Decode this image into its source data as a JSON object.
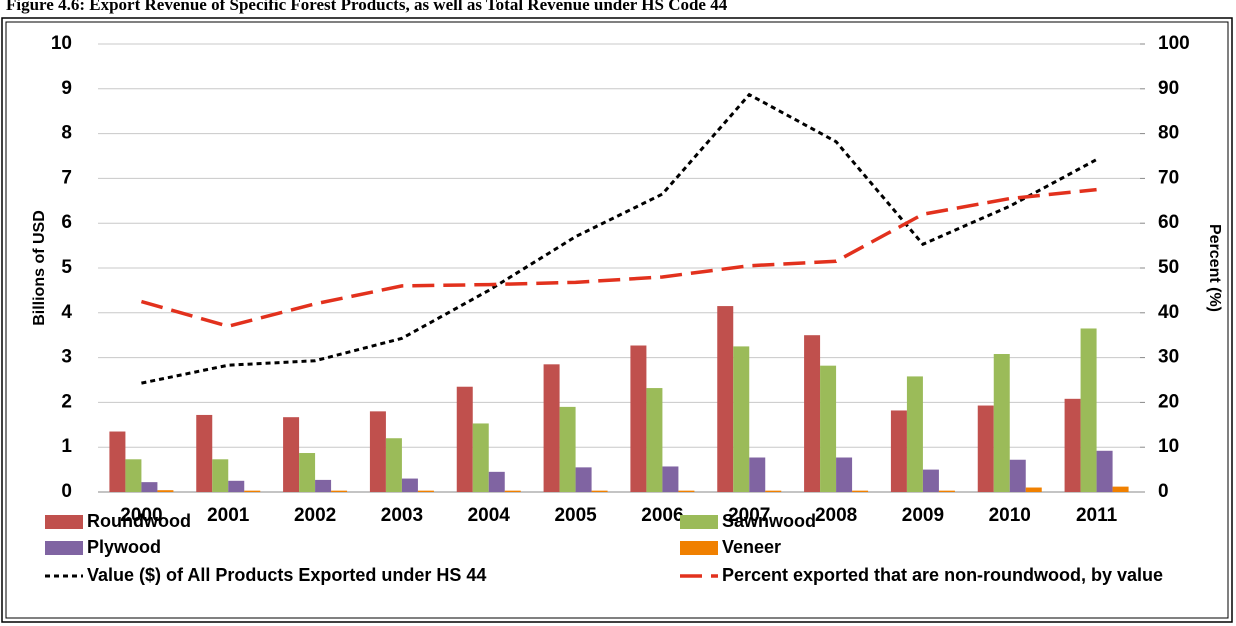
{
  "chart_data": {
    "type": "bar",
    "title": "Figure 4.6: Export Revenue of Specific Forest Products, as well as Total Revenue under HS Code 44",
    "ylabel": "Billions of USD",
    "y2label": "Percent (%)",
    "categories": [
      "2000",
      "2001",
      "2002",
      "2003",
      "2004",
      "2005",
      "2006",
      "2007",
      "2008",
      "2009",
      "2010",
      "2011"
    ],
    "series": [
      {
        "name": "Roundwood",
        "type": "bar",
        "color": "#c0504d",
        "values": [
          1.35,
          1.72,
          1.67,
          1.8,
          2.35,
          2.85,
          3.27,
          4.15,
          3.5,
          1.82,
          1.93,
          2.08
        ]
      },
      {
        "name": "Sawnwood",
        "type": "bar",
        "color": "#9bbb59",
        "values": [
          0.73,
          0.73,
          0.87,
          1.2,
          1.53,
          1.9,
          2.32,
          3.25,
          2.82,
          2.58,
          3.08,
          3.65
        ]
      },
      {
        "name": "Plywood",
        "type": "bar",
        "color": "#8064a2",
        "values": [
          0.22,
          0.25,
          0.27,
          0.3,
          0.45,
          0.55,
          0.57,
          0.77,
          0.77,
          0.5,
          0.72,
          0.92
        ]
      },
      {
        "name": "Veneer",
        "type": "bar",
        "color": "#f08000",
        "values": [
          0.04,
          0.03,
          0.03,
          0.03,
          0.03,
          0.03,
          0.03,
          0.03,
          0.03,
          0.03,
          0.1,
          0.12
        ]
      },
      {
        "name": "Value ($) of All Products Exported under HS 44",
        "type": "line",
        "color": "#000000",
        "values": [
          2.43,
          2.83,
          2.93,
          3.43,
          4.5,
          5.7,
          6.65,
          8.87,
          7.82,
          5.53,
          6.38,
          7.42
        ]
      },
      {
        "name": "Percent exported that are non-roundwood, by value",
        "type": "line",
        "axis": "y2",
        "color": "#e2311d",
        "values": [
          42.5,
          37,
          42,
          46,
          46.3,
          46.8,
          48,
          50.5,
          51.5,
          62,
          65.5,
          67.5
        ]
      }
    ],
    "ylim": [
      0,
      10
    ],
    "yticks": [
      0,
      1,
      2,
      3,
      4,
      5,
      6,
      7,
      8,
      9,
      10
    ],
    "y2lim": [
      0,
      100
    ],
    "y2ticks": [
      0,
      10,
      20,
      30,
      40,
      50,
      60,
      70,
      80,
      90,
      100
    ],
    "grid": true
  }
}
